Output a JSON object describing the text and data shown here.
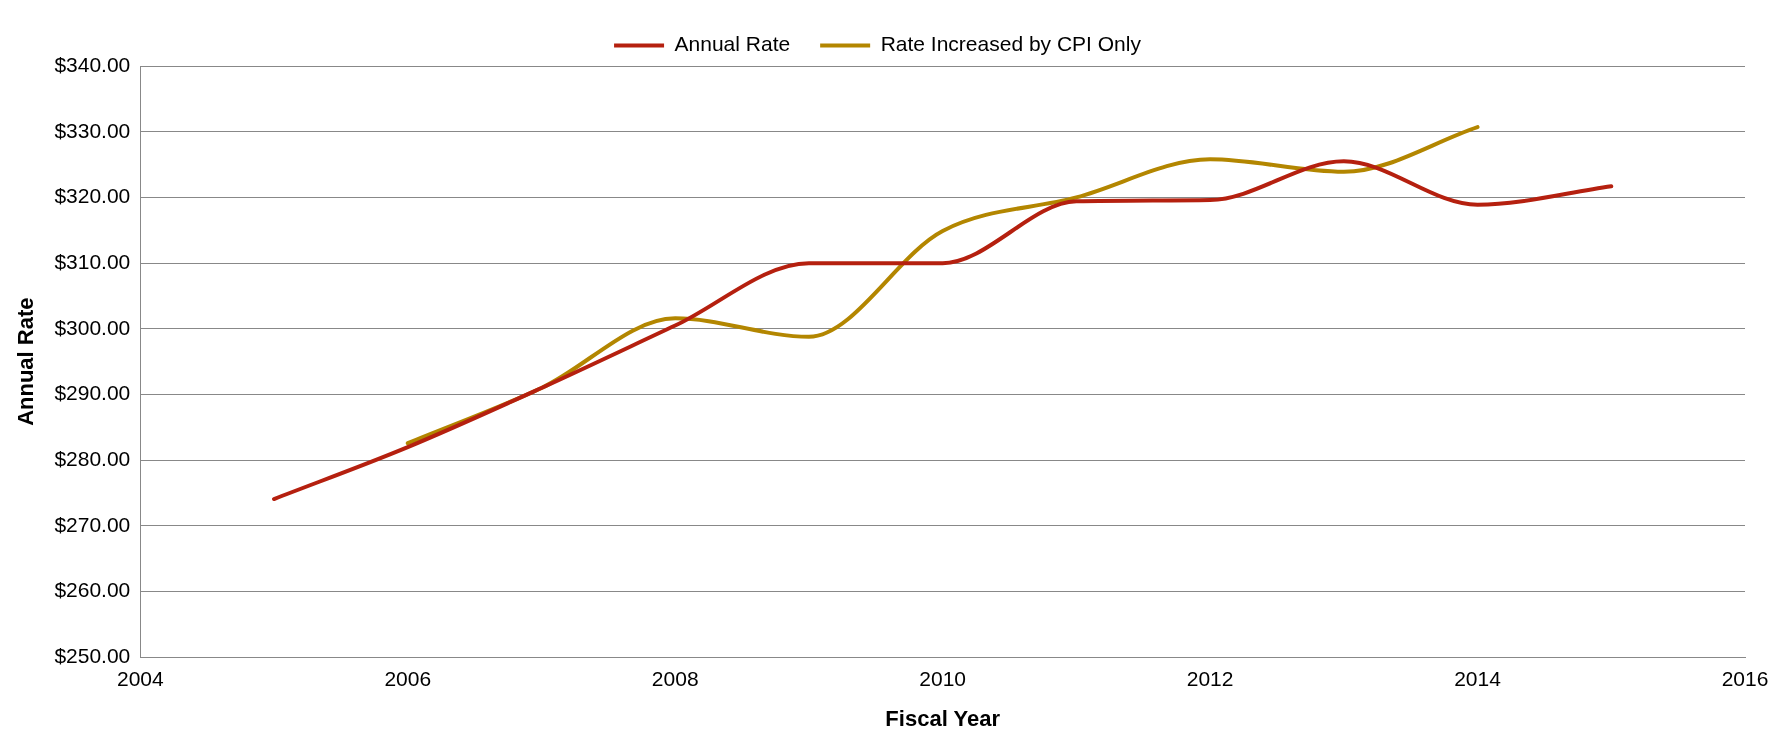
{
  "chart_data": {
    "type": "line",
    "xlabel": "Fiscal Year",
    "ylabel": "Annual Rate",
    "xlim": [
      2004,
      2016
    ],
    "xticks": [
      2004,
      2006,
      2008,
      2010,
      2012,
      2014,
      2016
    ],
    "ylim": [
      250,
      340
    ],
    "yticks": [
      {
        "value": 250,
        "label": "$250.00"
      },
      {
        "value": 260,
        "label": "$260.00"
      },
      {
        "value": 270,
        "label": "$270.00"
      },
      {
        "value": 280,
        "label": "$280.00"
      },
      {
        "value": 290,
        "label": "$290.00"
      },
      {
        "value": 300,
        "label": "$300.00"
      },
      {
        "value": 310,
        "label": "$310.00"
      },
      {
        "value": 320,
        "label": "$320.00"
      },
      {
        "value": 330,
        "label": "$330.00"
      },
      {
        "value": 340,
        "label": "$340.00"
      }
    ],
    "grid": "y",
    "legend": "top",
    "marker": "none",
    "line_style": "solid",
    "series": [
      {
        "name": "Annual Rate",
        "color": "#b5200f",
        "x": [
          2005,
          2006,
          2007,
          2008,
          2009,
          2010,
          2011,
          2012,
          2013,
          2014,
          2015
        ],
        "values": [
          274.1,
          282,
          291,
          300.5,
          310,
          310,
          319.4,
          319.6,
          325.5,
          318.9,
          321.7
        ]
      },
      {
        "name": "Rate Increased by CPI Only",
        "color": "#b38600",
        "x": [
          2006,
          2007,
          2008,
          2009,
          2010,
          2011,
          2012,
          2013,
          2014
        ],
        "values": [
          282.6,
          291,
          301.6,
          298.8,
          314.9,
          320,
          325.8,
          323.9,
          330.7
        ]
      }
    ]
  }
}
